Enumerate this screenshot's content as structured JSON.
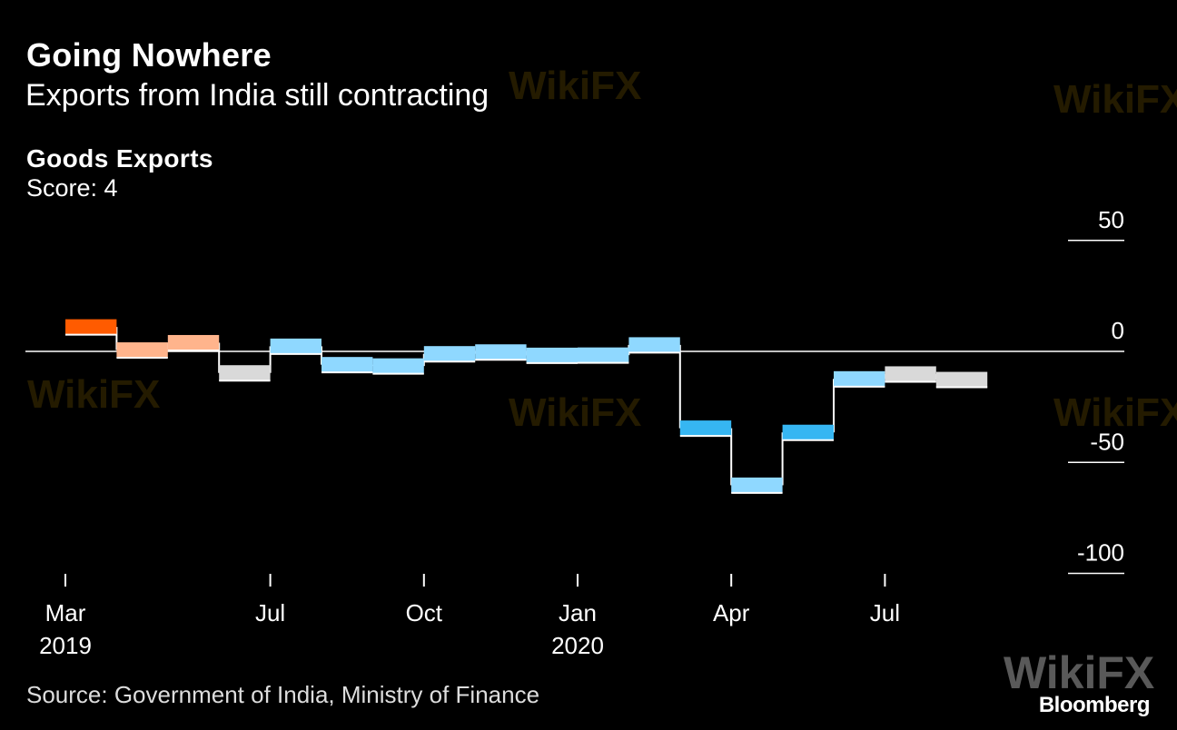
{
  "header": {
    "title": "Going Nowhere",
    "subtitle": "Exports from India still contracting"
  },
  "chart_label": {
    "name": "Goods Exports",
    "score": "Score: 4"
  },
  "footer": {
    "source": "Source: Government of India, Ministry of Finance",
    "brand": "Bloomberg",
    "watermark": "WikiFX"
  },
  "colors": {
    "background": "#000000",
    "strong_positive": "#ff5b00",
    "positive": "#ffb48c",
    "neutral": "#d9d9d9",
    "negative": "#8fd8ff",
    "strong_negative": "#36b6f2",
    "step_line": "#ffffff"
  },
  "chart_data": {
    "type": "line",
    "style": "step",
    "title": "Goods Exports",
    "ylim": [
      -100,
      50
    ],
    "yticks": [
      "50",
      "0",
      "-50",
      "-100"
    ],
    "ytick_values": [
      50,
      0,
      -50,
      -100
    ],
    "xticks": [
      {
        "label": "Mar",
        "year": "2019",
        "month_index": 0
      },
      {
        "label": "Jul",
        "year": "",
        "month_index": 4
      },
      {
        "label": "Oct",
        "year": "",
        "month_index": 7
      },
      {
        "label": "Jan",
        "year": "2020",
        "month_index": 10
      },
      {
        "label": "Apr",
        "year": "",
        "month_index": 13
      },
      {
        "label": "Jul",
        "year": "",
        "month_index": 16
      }
    ],
    "series": [
      {
        "months": [
          "2019-03",
          "2019-04",
          "2019-05",
          "2019-06",
          "2019-07",
          "2019-08",
          "2019-09",
          "2019-10",
          "2019-11",
          "2019-12",
          "2020-01",
          "2020-02",
          "2020-03",
          "2020-04",
          "2020-05",
          "2020-06",
          "2020-07",
          "2020-08"
        ],
        "values": [
          11.0,
          0.6,
          3.9,
          -9.7,
          2.3,
          -6.0,
          -6.6,
          -1.1,
          -0.3,
          -1.8,
          -1.7,
          2.9,
          -34.6,
          -60.3,
          -36.5,
          -12.4,
          -10.2,
          -12.7
        ],
        "categories": [
          "strong_positive",
          "positive",
          "positive",
          "neutral",
          "negative",
          "negative",
          "negative",
          "negative",
          "negative",
          "negative",
          "negative",
          "negative",
          "strong_negative",
          "negative",
          "strong_negative",
          "negative",
          "neutral",
          "neutral"
        ]
      }
    ]
  }
}
